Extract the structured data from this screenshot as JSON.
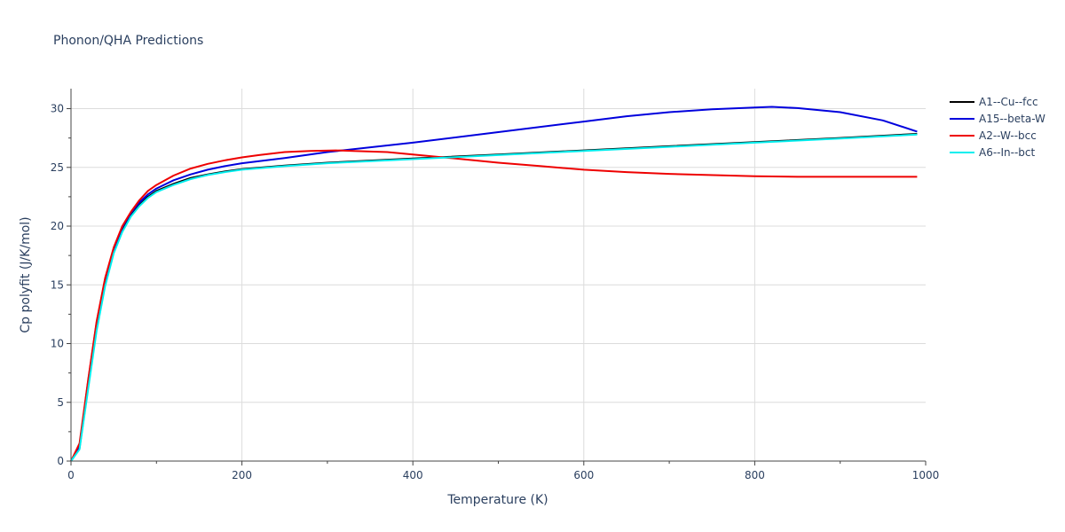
{
  "chart_data": {
    "type": "line",
    "title": "Phonon/QHA Predictions",
    "xlabel": "Temperature (K)",
    "ylabel": "Cp polyfit (J/K/mol)",
    "xlim": [
      0,
      1000
    ],
    "ylim": [
      0,
      31.7
    ],
    "xticks": [
      0,
      200,
      400,
      600,
      800,
      1000
    ],
    "yticks": [
      0,
      5,
      10,
      15,
      20,
      25,
      30
    ],
    "grid": true,
    "legend_position": "top-right",
    "series": [
      {
        "name": "A1--Cu--fcc",
        "color": "#000000",
        "x": [
          0,
          10,
          20,
          30,
          40,
          50,
          60,
          70,
          80,
          90,
          100,
          120,
          140,
          160,
          180,
          200,
          250,
          300,
          400,
          500,
          600,
          700,
          800,
          900,
          990
        ],
        "y": [
          0,
          1.1,
          6.3,
          11.3,
          15.1,
          17.8,
          19.6,
          20.9,
          21.8,
          22.5,
          23.0,
          23.6,
          24.1,
          24.4,
          24.65,
          24.85,
          25.15,
          25.4,
          25.75,
          26.1,
          26.45,
          26.8,
          27.15,
          27.5,
          27.85
        ]
      },
      {
        "name": "A15--beta-W",
        "color": "#0000dd",
        "x": [
          0,
          10,
          20,
          30,
          40,
          50,
          60,
          70,
          80,
          90,
          100,
          120,
          140,
          160,
          180,
          200,
          250,
          300,
          400,
          500,
          600,
          650,
          700,
          750,
          800,
          820,
          850,
          900,
          950,
          990
        ],
        "y": [
          0,
          1.3,
          6.8,
          11.8,
          15.5,
          18.1,
          19.9,
          21.1,
          22.0,
          22.7,
          23.2,
          23.9,
          24.4,
          24.8,
          25.1,
          25.35,
          25.8,
          26.3,
          27.1,
          28.0,
          28.9,
          29.35,
          29.7,
          29.95,
          30.1,
          30.15,
          30.05,
          29.7,
          29.0,
          28.05
        ]
      },
      {
        "name": "A2--W--bcc",
        "color": "#ee0000",
        "x": [
          0,
          10,
          20,
          30,
          40,
          50,
          60,
          70,
          80,
          90,
          100,
          120,
          140,
          160,
          180,
          200,
          220,
          250,
          280,
          310,
          330,
          370,
          400,
          450,
          500,
          550,
          600,
          650,
          700,
          800,
          850,
          900,
          950,
          990
        ],
        "y": [
          0,
          1.5,
          6.9,
          11.9,
          15.6,
          18.2,
          20.0,
          21.2,
          22.2,
          23.0,
          23.5,
          24.3,
          24.9,
          25.3,
          25.6,
          25.85,
          26.05,
          26.3,
          26.4,
          26.45,
          26.4,
          26.3,
          26.1,
          25.75,
          25.4,
          25.1,
          24.8,
          24.6,
          24.45,
          24.25,
          24.2,
          24.2,
          24.2,
          24.2
        ]
      },
      {
        "name": "A6--In--bct",
        "color": "#00eeee",
        "x": [
          0,
          10,
          20,
          30,
          40,
          50,
          60,
          70,
          80,
          90,
          100,
          120,
          140,
          160,
          180,
          200,
          250,
          300,
          400,
          500,
          600,
          700,
          800,
          900,
          990
        ],
        "y": [
          0,
          1.0,
          6.1,
          11.1,
          14.9,
          17.7,
          19.5,
          20.8,
          21.7,
          22.4,
          22.9,
          23.5,
          24.0,
          24.35,
          24.6,
          24.8,
          25.1,
          25.35,
          25.7,
          26.05,
          26.4,
          26.75,
          27.1,
          27.45,
          27.8
        ]
      }
    ]
  }
}
